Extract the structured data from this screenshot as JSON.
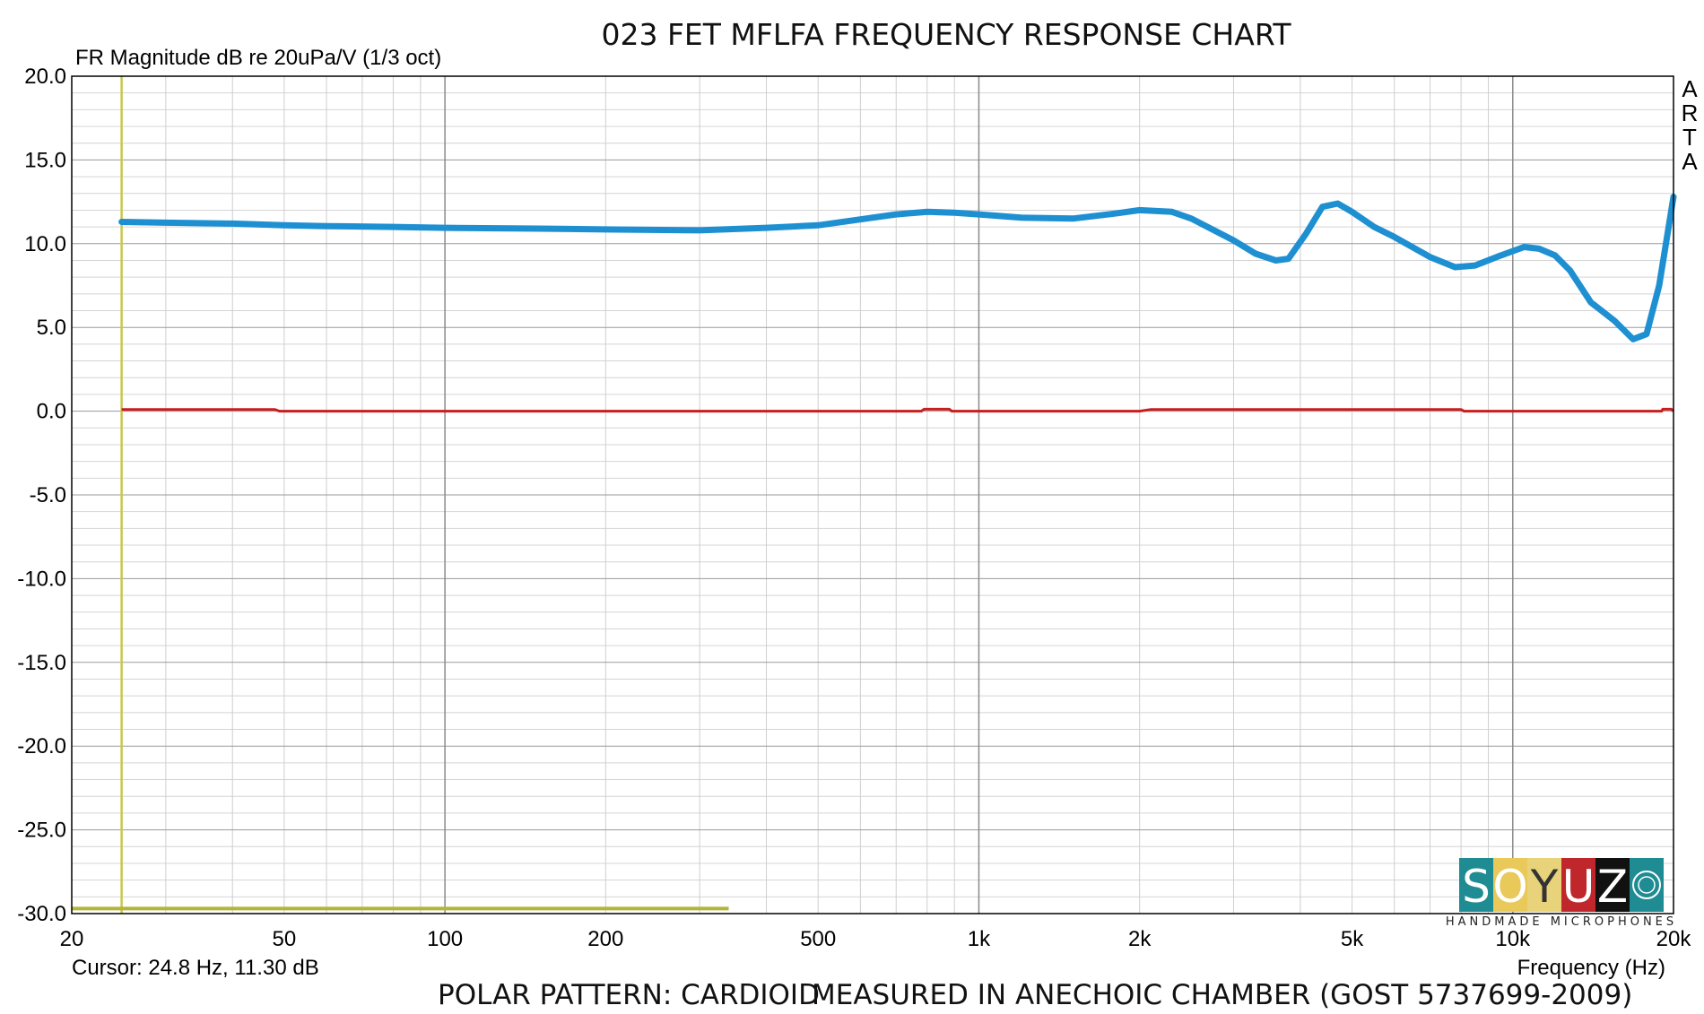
{
  "chart_data": {
    "type": "line",
    "title": "023 FET MFLFA FREQUENCY RESPONSE CHART",
    "ylabel": "FR Magnitude dB re 20uPa/V (1/3 oct)",
    "xlabel": "Frequency (Hz)",
    "x_scale": "log",
    "xlim": [
      20,
      20000
    ],
    "ylim": [
      -30,
      20
    ],
    "x_ticks": [
      {
        "value": 20,
        "label": "20"
      },
      {
        "value": 50,
        "label": "50"
      },
      {
        "value": 100,
        "label": "100"
      },
      {
        "value": 200,
        "label": "200"
      },
      {
        "value": 500,
        "label": "500"
      },
      {
        "value": 1000,
        "label": "1k"
      },
      {
        "value": 2000,
        "label": "2k"
      },
      {
        "value": 5000,
        "label": "5k"
      },
      {
        "value": 10000,
        "label": "10k"
      },
      {
        "value": 20000,
        "label": "20k"
      }
    ],
    "y_ticks": [
      {
        "value": 20,
        "label": "20.0"
      },
      {
        "value": 15,
        "label": "15.0"
      },
      {
        "value": 10,
        "label": "10.0"
      },
      {
        "value": 5,
        "label": "5.0"
      },
      {
        "value": 0,
        "label": "0.0"
      },
      {
        "value": -5,
        "label": "-5.0"
      },
      {
        "value": -10,
        "label": "-10.0"
      },
      {
        "value": -15,
        "label": "-15.0"
      },
      {
        "value": -20,
        "label": "-20.0"
      },
      {
        "value": -25,
        "label": "-25.0"
      },
      {
        "value": -30,
        "label": "-30.0"
      }
    ],
    "grid": true,
    "series": [
      {
        "color": "#1e90d2",
        "x": [
          24.8,
          30,
          40,
          50,
          60,
          80,
          100,
          150,
          200,
          300,
          400,
          500,
          600,
          700,
          800,
          900,
          1000,
          1200,
          1500,
          1800,
          2000,
          2300,
          2500,
          3000,
          3300,
          3600,
          3800,
          4100,
          4400,
          4700,
          5000,
          5500,
          6000,
          7000,
          7800,
          8500,
          9500,
          10500,
          11200,
          12000,
          12800,
          14000,
          15500,
          16800,
          17800,
          18800,
          20000
        ],
        "y": [
          11.3,
          11.25,
          11.2,
          11.1,
          11.05,
          11.0,
          10.95,
          10.9,
          10.85,
          10.8,
          10.95,
          11.1,
          11.45,
          11.75,
          11.9,
          11.85,
          11.75,
          11.55,
          11.5,
          11.8,
          12.0,
          11.9,
          11.5,
          10.2,
          9.4,
          9.0,
          9.1,
          10.6,
          12.2,
          12.4,
          11.9,
          11.0,
          10.4,
          9.2,
          8.6,
          8.7,
          9.3,
          9.8,
          9.7,
          9.3,
          8.4,
          6.5,
          5.4,
          4.3,
          4.6,
          7.5,
          12.8
        ]
      },
      {
        "color": "#c81e1e",
        "x": [
          24.8,
          48,
          49,
          780,
          790,
          880,
          890,
          2000,
          2100,
          8000,
          8100,
          19000,
          19100,
          19800,
          20000
        ],
        "y": [
          0.1,
          0.1,
          0.0,
          0.0,
          0.12,
          0.12,
          0.0,
          0.0,
          0.1,
          0.1,
          0.0,
          0.0,
          0.12,
          0.12,
          0.0
        ]
      }
    ],
    "cursor": {
      "frequency": 24.8,
      "label": "Cursor: 24.8 Hz, 11.30 dB",
      "color": "#c8c84a"
    },
    "lower_band": {
      "from": 20,
      "to": 340,
      "value": -29.7,
      "color": "#b4b43c"
    },
    "side_label": "ARTA",
    "footer_left": "POLAR PATTERN: CARDIOID",
    "footer_right": "MEASURED IN ANECHOIC CHAMBER (GOST 5737699-2009)"
  },
  "logo": {
    "letters": [
      "S",
      "O",
      "Y",
      "U",
      "Z"
    ],
    "tile_colors": [
      "#1f8c93",
      "#e8c95a",
      "#e8d27a",
      "#c0272d",
      "#111111",
      "#1f8c93"
    ],
    "letter_colors": [
      "#ffffff",
      "#ffffff",
      "#333333",
      "#ffffff",
      "#ffffff"
    ],
    "subtitle": "HANDMADE MICROPHONES"
  }
}
